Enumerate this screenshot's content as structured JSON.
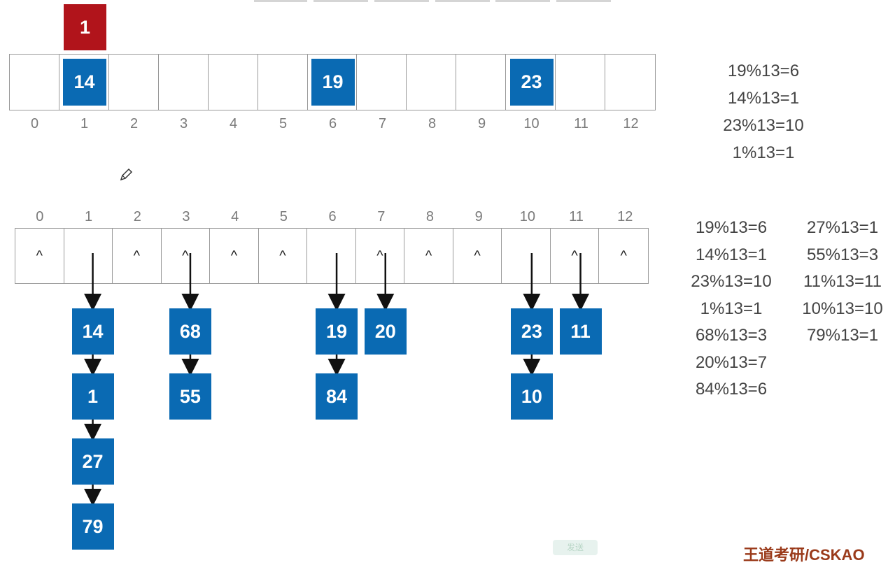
{
  "top_array": {
    "indices": [
      "0",
      "1",
      "2",
      "3",
      "4",
      "5",
      "6",
      "7",
      "8",
      "9",
      "10",
      "11",
      "12"
    ],
    "slots": [
      {
        "index": 1,
        "value": "14"
      },
      {
        "index": 6,
        "value": "19"
      },
      {
        "index": 10,
        "value": "23"
      }
    ],
    "incoming": {
      "index": 1,
      "value": "1",
      "color": "#b1141b"
    }
  },
  "top_formulas": [
    "19%13=6",
    "14%13=1",
    "23%13=10",
    "1%13=1"
  ],
  "bottom_array": {
    "indices": [
      "0",
      "1",
      "2",
      "3",
      "4",
      "5",
      "6",
      "7",
      "8",
      "9",
      "10",
      "11",
      "12"
    ],
    "null_marker": "^",
    "chains": [
      {
        "index": 1,
        "nodes": [
          "14",
          "1",
          "27",
          "79"
        ]
      },
      {
        "index": 3,
        "nodes": [
          "68",
          "55"
        ]
      },
      {
        "index": 6,
        "nodes": [
          "19",
          "84"
        ]
      },
      {
        "index": 7,
        "nodes": [
          "20"
        ]
      },
      {
        "index": 10,
        "nodes": [
          "23",
          "10"
        ]
      },
      {
        "index": 11,
        "nodes": [
          "11"
        ]
      }
    ],
    "caret_under_arrow": [
      3,
      7,
      11
    ]
  },
  "bottom_formulas_left": [
    "19%13=6",
    "14%13=1",
    "23%13=10",
    "1%13=1",
    "68%13=3",
    "20%13=7",
    "84%13=6"
  ],
  "bottom_formulas_right": [
    "27%13=1",
    "55%13=3",
    "11%13=11",
    "10%13=10",
    "79%13=1"
  ],
  "colors": {
    "node": "#0a6ab3",
    "incoming": "#b1141b"
  },
  "footer": {
    "watermark": "王道考研/CSKAO",
    "button": "发送"
  }
}
